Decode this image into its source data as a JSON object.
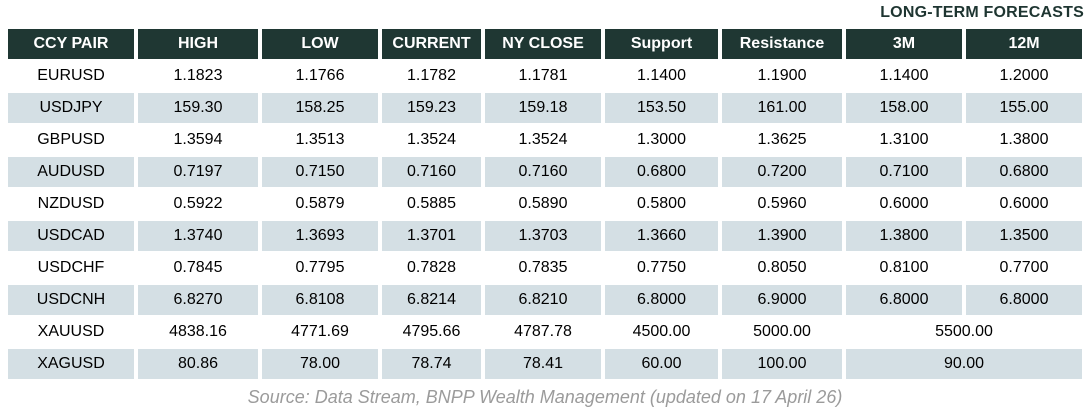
{
  "page": {
    "forecast_label": "LONG-TERM FORECASTS",
    "source": "Source: Data Stream, BNPP Wealth Management (updated on 17 April 26)"
  },
  "colors": {
    "header_bg": "#1f3733",
    "header_text": "#ffffff",
    "stripe_bg": "#d4dfe4",
    "forecast_label_text": "#1e3531",
    "source_text": "#9b9b9b"
  },
  "table": {
    "columns": [
      "CCY PAIR",
      "HIGH",
      "LOW",
      "CURRENT",
      "NY CLOSE",
      "Support",
      "Resistance",
      "3M",
      "12M"
    ],
    "rows": [
      {
        "pair": "EURUSD",
        "values": [
          "1.1823",
          "1.1766",
          "1.1782",
          "1.1781",
          "1.1400",
          "1.1900",
          "1.1400",
          "1.2000"
        ]
      },
      {
        "pair": "USDJPY",
        "values": [
          "159.30",
          "158.25",
          "159.23",
          "159.18",
          "153.50",
          "161.00",
          "158.00",
          "155.00"
        ]
      },
      {
        "pair": "GBPUSD",
        "values": [
          "1.3594",
          "1.3513",
          "1.3524",
          "1.3524",
          "1.3000",
          "1.3625",
          "1.3100",
          "1.3800"
        ]
      },
      {
        "pair": "AUDUSD",
        "values": [
          "0.7197",
          "0.7150",
          "0.7160",
          "0.7160",
          "0.6800",
          "0.7200",
          "0.7100",
          "0.6800"
        ]
      },
      {
        "pair": "NZDUSD",
        "values": [
          "0.5922",
          "0.5879",
          "0.5885",
          "0.5890",
          "0.5800",
          "0.5960",
          "0.6000",
          "0.6000"
        ]
      },
      {
        "pair": "USDCAD",
        "values": [
          "1.3740",
          "1.3693",
          "1.3701",
          "1.3703",
          "1.3660",
          "1.3900",
          "1.3800",
          "1.3500"
        ]
      },
      {
        "pair": "USDCHF",
        "values": [
          "0.7845",
          "0.7795",
          "0.7828",
          "0.7835",
          "0.7750",
          "0.8050",
          "0.8100",
          "0.7700"
        ]
      },
      {
        "pair": "USDCNH",
        "values": [
          "6.8270",
          "6.8108",
          "6.8214",
          "6.8210",
          "6.8000",
          "6.9000",
          "6.8000",
          "6.8000"
        ]
      },
      {
        "pair": "XAUUSD",
        "values": [
          "4838.16",
          "4771.69",
          "4795.66",
          "4787.78",
          "4500.00",
          "5000.00"
        ],
        "forecast_merged": "5500.00"
      },
      {
        "pair": "XAGUSD",
        "values": [
          "80.86",
          "78.00",
          "78.74",
          "78.41",
          "60.00",
          "100.00"
        ],
        "forecast_merged": "90.00"
      }
    ]
  }
}
